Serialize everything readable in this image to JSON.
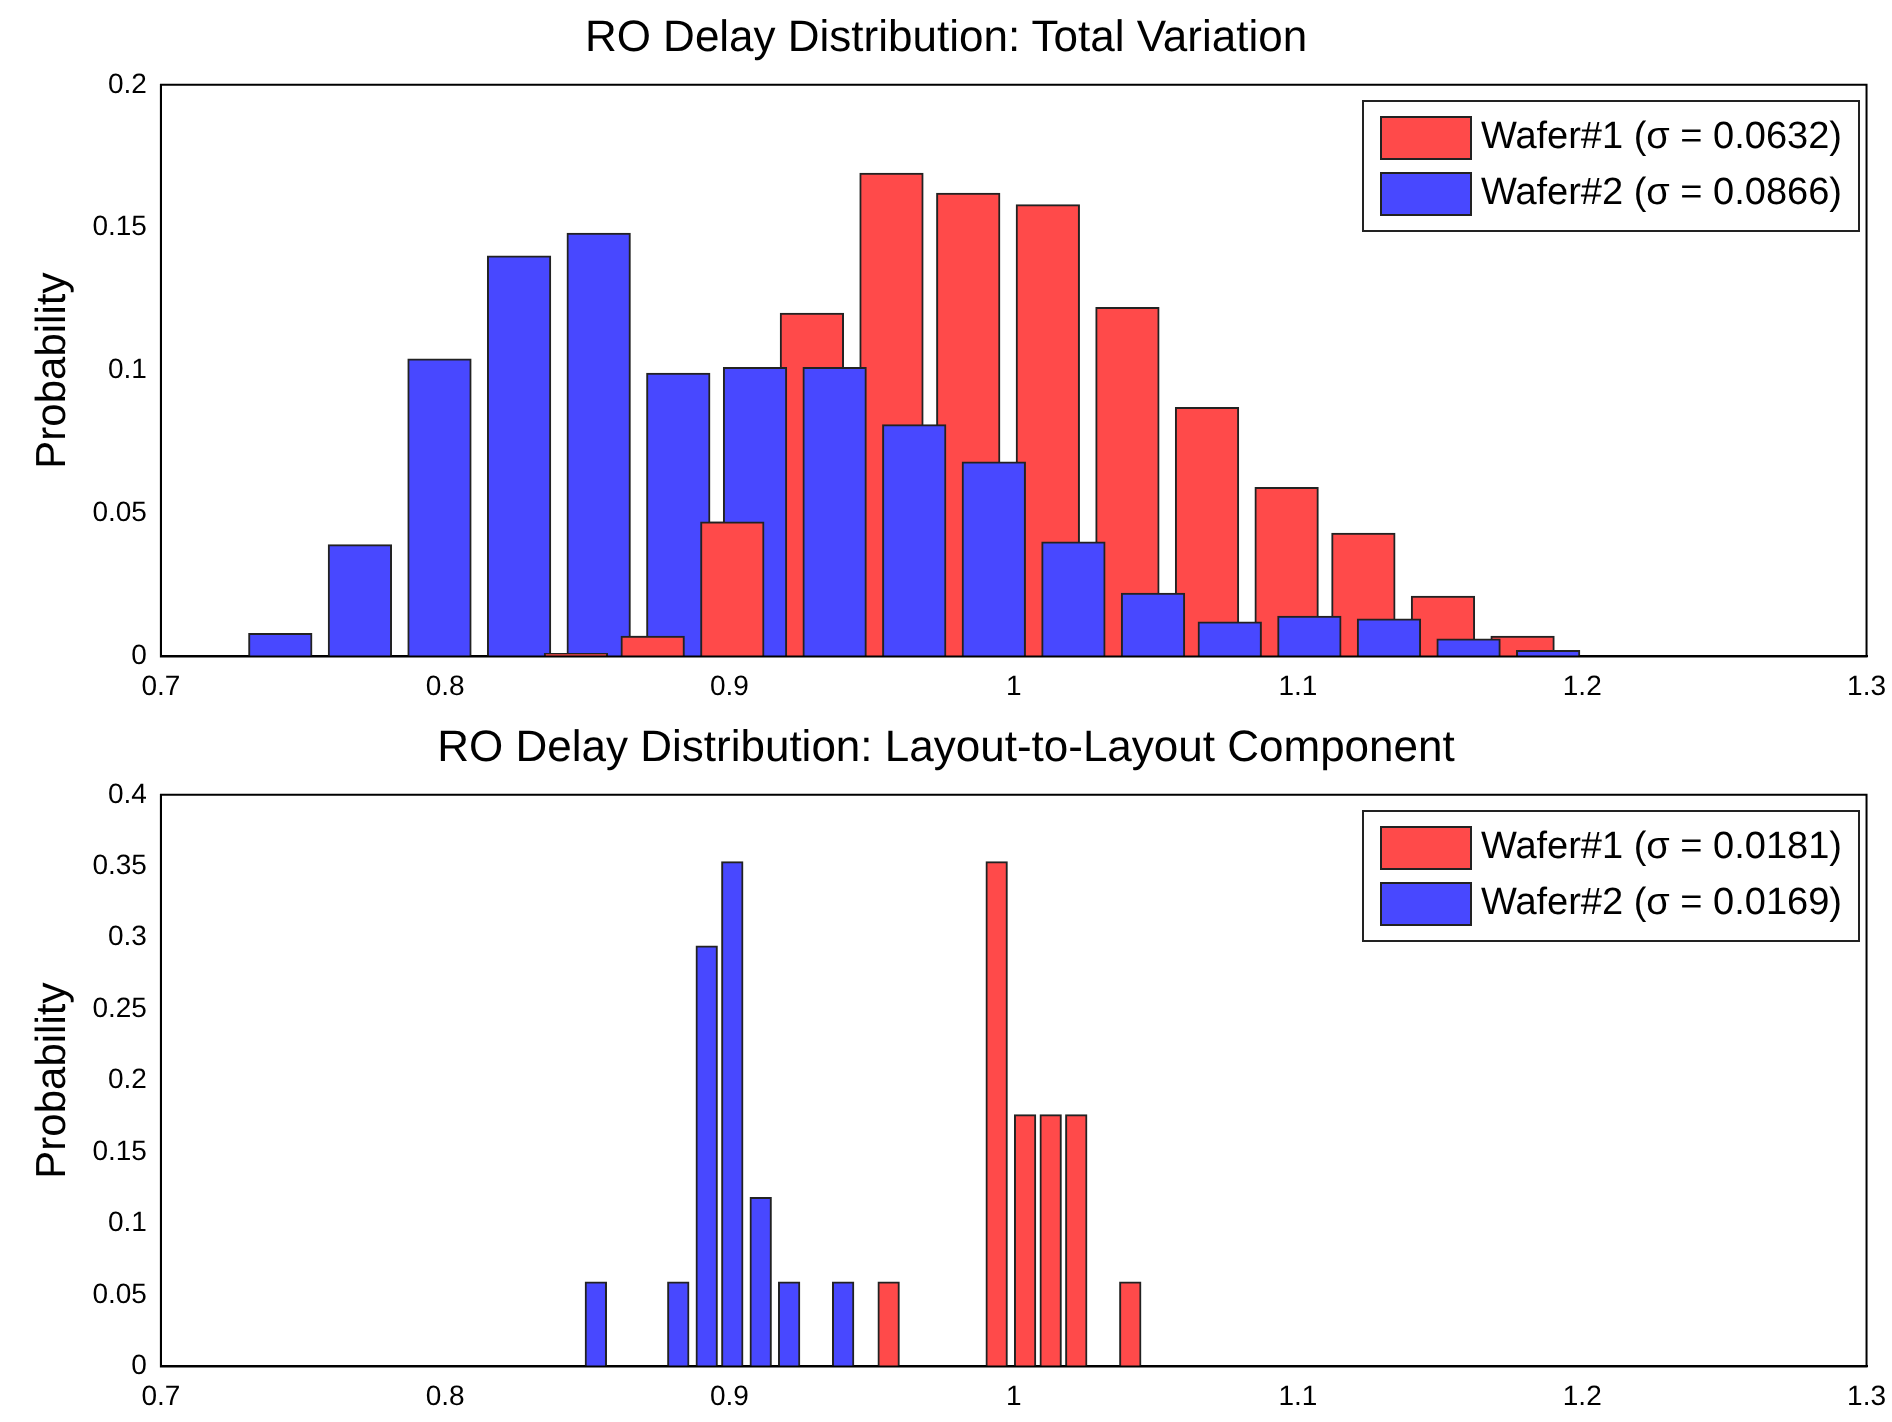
{
  "chart_data": [
    {
      "type": "bar",
      "title": "RO Delay Distribution: Total Variation",
      "ylabel": "Probability",
      "xlim": [
        0.7,
        1.3
      ],
      "xticks": [
        0.7,
        0.8,
        0.9,
        1,
        1.1,
        1.2,
        1.3
      ],
      "ylim": [
        0,
        0.2
      ],
      "yticks": [
        0,
        0.05,
        0.1,
        0.15,
        0.2
      ],
      "legend": "top right",
      "grid": false,
      "series": [
        {
          "name": "Wafer#2 (σ = 0.0866)",
          "color": "#4848ff",
          "x": [
            0.742,
            0.77,
            0.798,
            0.826,
            0.854,
            0.882,
            0.909,
            0.937,
            0.965,
            0.993,
            1.021,
            1.049,
            1.076,
            1.104,
            1.132,
            1.16,
            1.188
          ],
          "values": [
            0.008,
            0.039,
            0.104,
            0.14,
            0.148,
            0.099,
            0.101,
            0.101,
            0.081,
            0.068,
            0.04,
            0.022,
            0.012,
            0.014,
            0.013,
            0.006,
            0.002
          ]
        },
        {
          "name": "Wafer#1 (σ = 0.0632)",
          "color": "#ff4a4a",
          "x": [
            0.846,
            0.873,
            0.901,
            0.929,
            0.957,
            0.984,
            1.012,
            1.04,
            1.068,
            1.096,
            1.123,
            1.151,
            1.179
          ],
          "values": [
            0.001,
            0.007,
            0.047,
            0.12,
            0.169,
            0.162,
            0.158,
            0.122,
            0.087,
            0.059,
            0.043,
            0.021,
            0.007
          ]
        }
      ]
    },
    {
      "type": "bar",
      "title": "RO Delay Distribution: Layout-to-Layout Component",
      "ylabel": "Probability",
      "xlim": [
        0.7,
        1.3
      ],
      "xticks": [
        0.7,
        0.8,
        0.9,
        1,
        1.1,
        1.2,
        1.3
      ],
      "ylim": [
        0,
        0.4
      ],
      "yticks": [
        0,
        0.05,
        0.1,
        0.15,
        0.2,
        0.25,
        0.3,
        0.35,
        0.4
      ],
      "legend": "top right",
      "grid": false,
      "series": [
        {
          "name": "Wafer#2 (σ = 0.0169)",
          "color": "#4848ff",
          "x": [
            0.853,
            0.882,
            0.892,
            0.901,
            0.911,
            0.921,
            0.94
          ],
          "values": [
            0.059,
            0.059,
            0.294,
            0.353,
            0.118,
            0.059,
            0.059
          ]
        },
        {
          "name": "Wafer#1 (σ = 0.0181)",
          "color": "#ff4a4a",
          "x": [
            0.956,
            0.994,
            1.004,
            1.013,
            1.022,
            1.041
          ],
          "values": [
            0.059,
            0.353,
            0.176,
            0.176,
            0.176,
            0.059
          ]
        }
      ]
    }
  ]
}
